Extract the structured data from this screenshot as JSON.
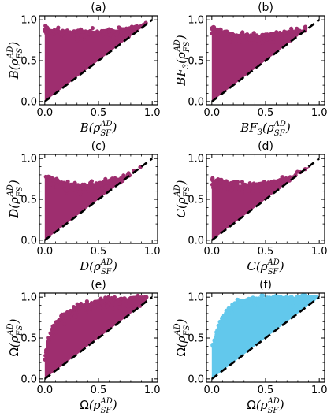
{
  "figure": {
    "scatter_colors": {
      "purple": "#9e2e6f",
      "blue": "#62c8ec"
    },
    "diagonal_color": "#000000"
  },
  "chart_data": [
    {
      "type": "scatter",
      "title": "(a)",
      "xlabel": {
        "fn": "B",
        "sub": "SF",
        "sup": "AD"
      },
      "ylabel": {
        "fn": "B",
        "sub": "FS",
        "sup": "AD"
      },
      "xticks": [
        "0.0",
        "0.5",
        "1.0"
      ],
      "yticks": [
        "0.0",
        "0.5",
        "1.0"
      ],
      "xlim": [
        0,
        1
      ],
      "ylim": [
        0,
        1
      ],
      "color": "#9e2e6f",
      "diagonal": "y=x dashed",
      "envelope": [
        [
          0.0,
          0.9
        ],
        [
          0.2,
          0.86
        ],
        [
          0.4,
          0.86
        ],
        [
          0.6,
          0.87
        ],
        [
          0.8,
          0.9
        ],
        [
          0.95,
          0.95
        ]
      ]
    },
    {
      "type": "scatter",
      "title": "(b)",
      "xlabel": {
        "fn": "BF",
        "fsub": "3",
        "sub": "SF",
        "sup": "AD"
      },
      "ylabel": {
        "fn": "BF",
        "fsub": "3",
        "sub": "FS",
        "sup": "AD"
      },
      "xticks": [
        "0.0",
        "0.5",
        "1.0"
      ],
      "yticks": [
        "0.0",
        "0.5",
        "1.0"
      ],
      "xlim": [
        0,
        1
      ],
      "ylim": [
        0,
        1
      ],
      "color": "#9e2e6f",
      "diagonal": "y=x dashed",
      "envelope": [
        [
          0.0,
          0.92
        ],
        [
          0.2,
          0.82
        ],
        [
          0.4,
          0.81
        ],
        [
          0.6,
          0.83
        ],
        [
          0.8,
          0.87
        ],
        [
          0.92,
          0.9
        ]
      ]
    },
    {
      "type": "scatter",
      "title": "(c)",
      "xlabel": {
        "fn": "D",
        "sub": "SF",
        "sup": "AD"
      },
      "ylabel": {
        "fn": "D",
        "sub": "FS",
        "sup": "AD"
      },
      "xticks": [
        "0.0",
        "0.5",
        "1.0"
      ],
      "yticks": [
        "0.0",
        "0.5",
        "1.0"
      ],
      "xlim": [
        0,
        1
      ],
      "ylim": [
        0,
        1
      ],
      "color": "#9e2e6f",
      "diagonal": "y=x dashed",
      "envelope": [
        [
          0.0,
          0.8
        ],
        [
          0.2,
          0.68
        ],
        [
          0.4,
          0.68
        ],
        [
          0.6,
          0.72
        ],
        [
          0.8,
          0.8
        ],
        [
          0.9,
          0.88
        ]
      ]
    },
    {
      "type": "scatter",
      "title": "(d)",
      "xlabel": {
        "fn": "C",
        "sub": "SF",
        "sup": "AD"
      },
      "ylabel": {
        "fn": "C",
        "sub": "FS",
        "sup": "AD"
      },
      "xticks": [
        "0.0",
        "0.5",
        "1.0"
      ],
      "yticks": [
        "0.0",
        "0.5",
        "1.0"
      ],
      "xlim": [
        0,
        1
      ],
      "ylim": [
        0,
        1
      ],
      "color": "#9e2e6f",
      "diagonal": "y=x dashed",
      "envelope": [
        [
          0.0,
          0.75
        ],
        [
          0.2,
          0.68
        ],
        [
          0.4,
          0.68
        ],
        [
          0.6,
          0.72
        ],
        [
          0.8,
          0.8
        ],
        [
          0.92,
          0.9
        ]
      ]
    },
    {
      "type": "scatter",
      "title": "(e)",
      "xlabel": {
        "fn": "Ω",
        "sub": "SF",
        "sup": "AD",
        "roman": true
      },
      "ylabel": {
        "fn": "Ω",
        "sub": "FS",
        "sup": "AD",
        "roman": true
      },
      "xticks": [
        "0.0",
        "0.5",
        "1.0"
      ],
      "yticks": [
        "0.0",
        "0.5",
        "1.0"
      ],
      "xlim": [
        0,
        1
      ],
      "ylim": [
        0,
        1
      ],
      "color": "#9e2e6f",
      "diagonal": "y=x dashed",
      "envelope": [
        [
          0.0,
          0.32
        ],
        [
          0.05,
          0.55
        ],
        [
          0.1,
          0.68
        ],
        [
          0.2,
          0.8
        ],
        [
          0.3,
          0.88
        ],
        [
          0.45,
          0.94
        ],
        [
          0.6,
          0.97
        ],
        [
          0.8,
          0.99
        ],
        [
          0.95,
          1.0
        ]
      ]
    },
    {
      "type": "scatter",
      "title": "(f)",
      "xlabel": {
        "fn": "Ω",
        "sub": "SF",
        "sup": "AD",
        "roman": true
      },
      "ylabel": {
        "fn": "Ω",
        "sub": "FS",
        "sup": "AD",
        "roman": true
      },
      "xticks": [
        "0.0",
        "0.5",
        "1.0"
      ],
      "yticks": [
        "0.0",
        "0.5",
        "1.0"
      ],
      "xlim": [
        0,
        1
      ],
      "ylim": [
        0,
        1
      ],
      "color": "#62c8ec",
      "diagonal": "y=x dashed",
      "envelope": [
        [
          0.0,
          0.38
        ],
        [
          0.05,
          0.62
        ],
        [
          0.1,
          0.78
        ],
        [
          0.15,
          0.86
        ],
        [
          0.2,
          0.92
        ],
        [
          0.3,
          0.96
        ],
        [
          0.45,
          0.99
        ],
        [
          0.6,
          1.0
        ],
        [
          1.0,
          1.0
        ]
      ]
    }
  ]
}
